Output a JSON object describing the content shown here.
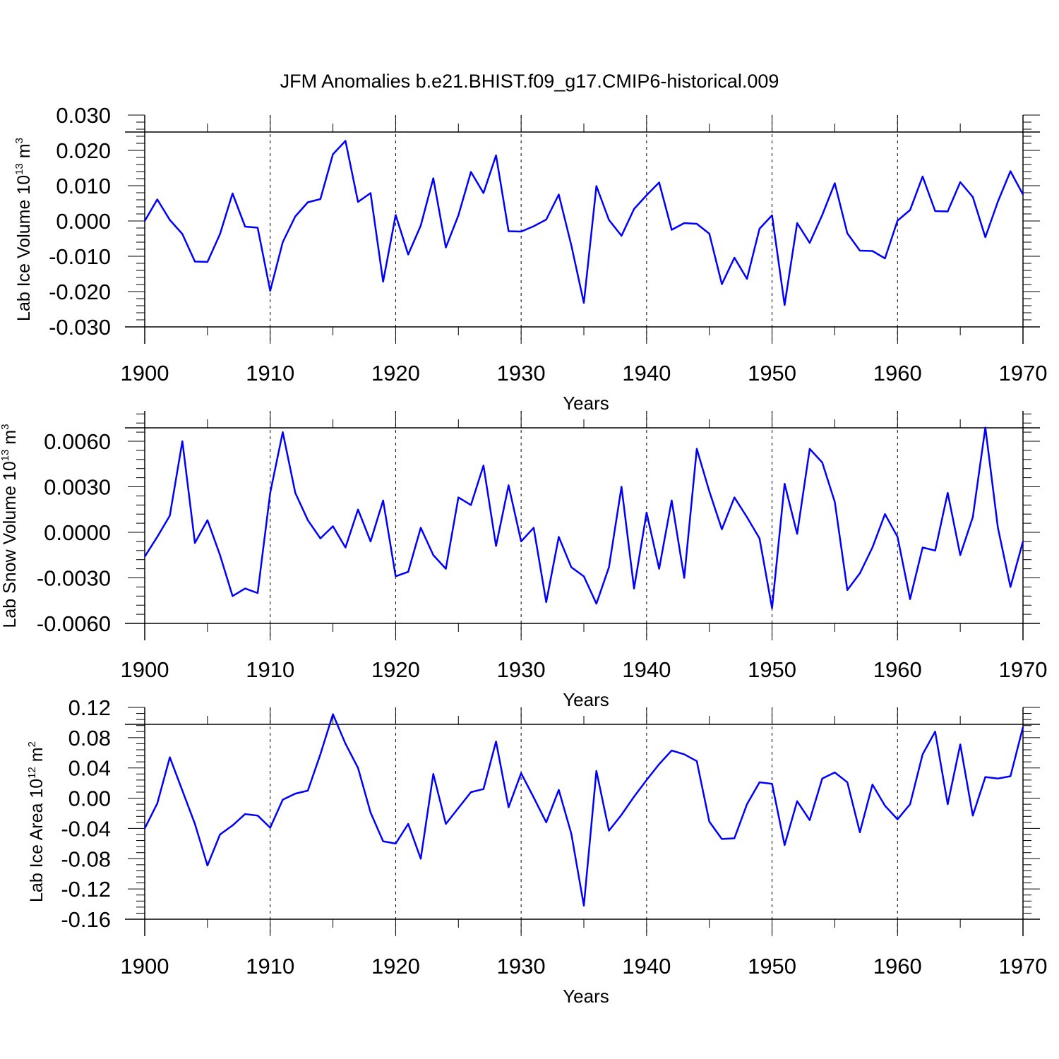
{
  "figure": {
    "title": "JFM Anomalies b.e21.BHIST.f09_g17.CMIP6-historical.009"
  },
  "colors": {
    "line": "#0000ff",
    "axis": "#000000",
    "grid": "#000000",
    "background": "#ffffff"
  },
  "chart_data": [
    {
      "type": "line",
      "title": "",
      "xlabel": "Years",
      "ylabel": {
        "text": "Lab Ice Volume 10",
        "exp": "13",
        "unit": " m",
        "unit_exp": "3"
      },
      "xlim": [
        1900,
        1970
      ],
      "ylim": [
        -0.03,
        0.03
      ],
      "grid": "vertical dashed at major ticks",
      "x_ticks": [
        1900,
        1910,
        1920,
        1930,
        1940,
        1950,
        1960,
        1970
      ],
      "x_tick_labels": [
        "1900",
        "1910",
        "1920",
        "1930",
        "1940",
        "1950",
        "1960",
        "1970"
      ],
      "y_ticks": [
        -0.03,
        -0.02,
        -0.01,
        0.0,
        0.01,
        0.02,
        0.03
      ],
      "y_tick_labels": [
        "-0.030",
        "-0.020",
        "-0.010",
        "0.000",
        "0.010",
        "0.020",
        "0.030"
      ],
      "y_minor_step": 0.002,
      "series": [
        {
          "name": "Lab Ice Volume anomaly",
          "x_start": 1900,
          "values": [
            0.0,
            0.0061,
            0.0003,
            -0.0037,
            -0.0115,
            -0.0116,
            -0.0037,
            0.0078,
            -0.0016,
            -0.0019,
            -0.0198,
            -0.006,
            0.0013,
            0.0053,
            0.0062,
            0.0189,
            0.0227,
            0.0054,
            0.0079,
            -0.0172,
            0.0017,
            -0.0095,
            -0.0013,
            0.0121,
            -0.0075,
            0.0016,
            0.0139,
            0.0079,
            0.0186,
            -0.0029,
            -0.003,
            -0.0015,
            0.0004,
            0.0075,
            -0.0069,
            -0.0232,
            0.0099,
            0.0003,
            -0.0042,
            0.0034,
            0.0073,
            0.0109,
            -0.0025,
            -0.0006,
            -0.0008,
            -0.0036,
            -0.0179,
            -0.0104,
            -0.0164,
            -0.0022,
            0.0016,
            -0.0238,
            -0.0006,
            -0.0062,
            0.0017,
            0.0107,
            -0.0035,
            -0.0084,
            -0.0085,
            -0.0106,
            0.0001,
            0.0031,
            0.0126,
            0.0028,
            0.0027,
            0.011,
            0.0068,
            -0.0046,
            0.0055,
            0.0141,
            0.0075
          ]
        }
      ]
    },
    {
      "type": "line",
      "title": "",
      "xlabel": "Years",
      "ylabel": {
        "text": "Lab Snow Volume 10",
        "exp": "13",
        "unit": " m",
        "unit_exp": "3"
      },
      "xlim": [
        1900,
        1970
      ],
      "ylim": [
        -0.006,
        0.008
      ],
      "grid": "vertical dashed at major ticks",
      "x_ticks": [
        1900,
        1910,
        1920,
        1930,
        1940,
        1950,
        1960,
        1970
      ],
      "x_tick_labels": [
        "1900",
        "1910",
        "1920",
        "1930",
        "1940",
        "1950",
        "1960",
        "1970"
      ],
      "y_ticks": [
        -0.006,
        -0.003,
        0.0,
        0.003,
        0.006
      ],
      "y_tick_labels": [
        "-0.0060",
        "-0.0030",
        "0.0000",
        "0.0030",
        "0.0060"
      ],
      "y_minor_step": 0.0006,
      "series": [
        {
          "name": "Lab Snow Volume anomaly",
          "x_start": 1900,
          "values": [
            -0.0016,
            -0.0003,
            0.0011,
            0.006,
            -0.0007,
            0.0008,
            -0.0015,
            -0.0042,
            -0.0037,
            -0.004,
            0.0026,
            0.0066,
            0.0026,
            0.0008,
            -0.0004,
            0.0004,
            -0.001,
            0.0015,
            -0.0006,
            0.0021,
            -0.0029,
            -0.0026,
            0.0003,
            -0.0015,
            -0.0024,
            0.0023,
            0.0018,
            0.0044,
            -0.0009,
            0.0031,
            -0.0006,
            0.0003,
            -0.0046,
            -0.0003,
            -0.0023,
            -0.0029,
            -0.0047,
            -0.0023,
            0.003,
            -0.0037,
            0.0013,
            -0.0024,
            0.0021,
            -0.003,
            0.0055,
            0.0027,
            0.0002,
            0.0023,
            0.001,
            -0.0004,
            -0.005,
            0.0032,
            -0.0001,
            0.0055,
            0.0046,
            0.002,
            -0.0038,
            -0.0027,
            -0.001,
            0.0012,
            -0.0003,
            -0.0044,
            -0.001,
            -0.0012,
            0.0026,
            -0.0015,
            0.001,
            0.0069,
            0.0003,
            -0.0036,
            -0.0006
          ]
        }
      ]
    },
    {
      "type": "line",
      "title": "",
      "xlabel": "Years",
      "ylabel": {
        "text": "Lab Ice Area 10",
        "exp": "12",
        "unit": " m",
        "unit_exp": "2"
      },
      "xlim": [
        1900,
        1970
      ],
      "ylim": [
        -0.16,
        0.12
      ],
      "grid": "vertical dashed at major ticks",
      "x_ticks": [
        1900,
        1910,
        1920,
        1930,
        1940,
        1950,
        1960,
        1970
      ],
      "x_tick_labels": [
        "1900",
        "1910",
        "1920",
        "1930",
        "1940",
        "1950",
        "1960",
        "1970"
      ],
      "y_ticks": [
        -0.16,
        -0.12,
        -0.08,
        -0.04,
        0.0,
        0.04,
        0.08,
        0.12
      ],
      "y_tick_labels": [
        "-0.16",
        "-0.12",
        "-0.08",
        "-0.04",
        "0.00",
        "0.04",
        "0.08",
        "0.12"
      ],
      "y_minor_step": 0.008,
      "series": [
        {
          "name": "Lab Ice Area anomaly",
          "x_start": 1900,
          "values": [
            -0.04,
            -0.007,
            0.054,
            0.01,
            -0.034,
            -0.089,
            -0.048,
            -0.036,
            -0.021,
            -0.023,
            -0.039,
            -0.002,
            0.006,
            0.01,
            0.058,
            0.111,
            0.072,
            0.04,
            -0.019,
            -0.057,
            -0.06,
            -0.034,
            -0.08,
            0.032,
            -0.034,
            -0.013,
            0.008,
            0.012,
            0.075,
            -0.012,
            0.033,
            0.001,
            -0.032,
            0.011,
            -0.047,
            -0.142,
            0.036,
            -0.043,
            -0.022,
            0.002,
            0.024,
            0.045,
            0.063,
            0.058,
            0.049,
            -0.031,
            -0.054,
            -0.053,
            -0.008,
            0.021,
            0.019,
            -0.062,
            -0.004,
            -0.029,
            0.026,
            0.034,
            0.021,
            -0.045,
            0.018,
            -0.01,
            -0.028,
            -0.008,
            0.058,
            0.088,
            -0.008,
            0.071,
            -0.023,
            0.028,
            0.026,
            0.029,
            0.094
          ]
        }
      ]
    }
  ]
}
